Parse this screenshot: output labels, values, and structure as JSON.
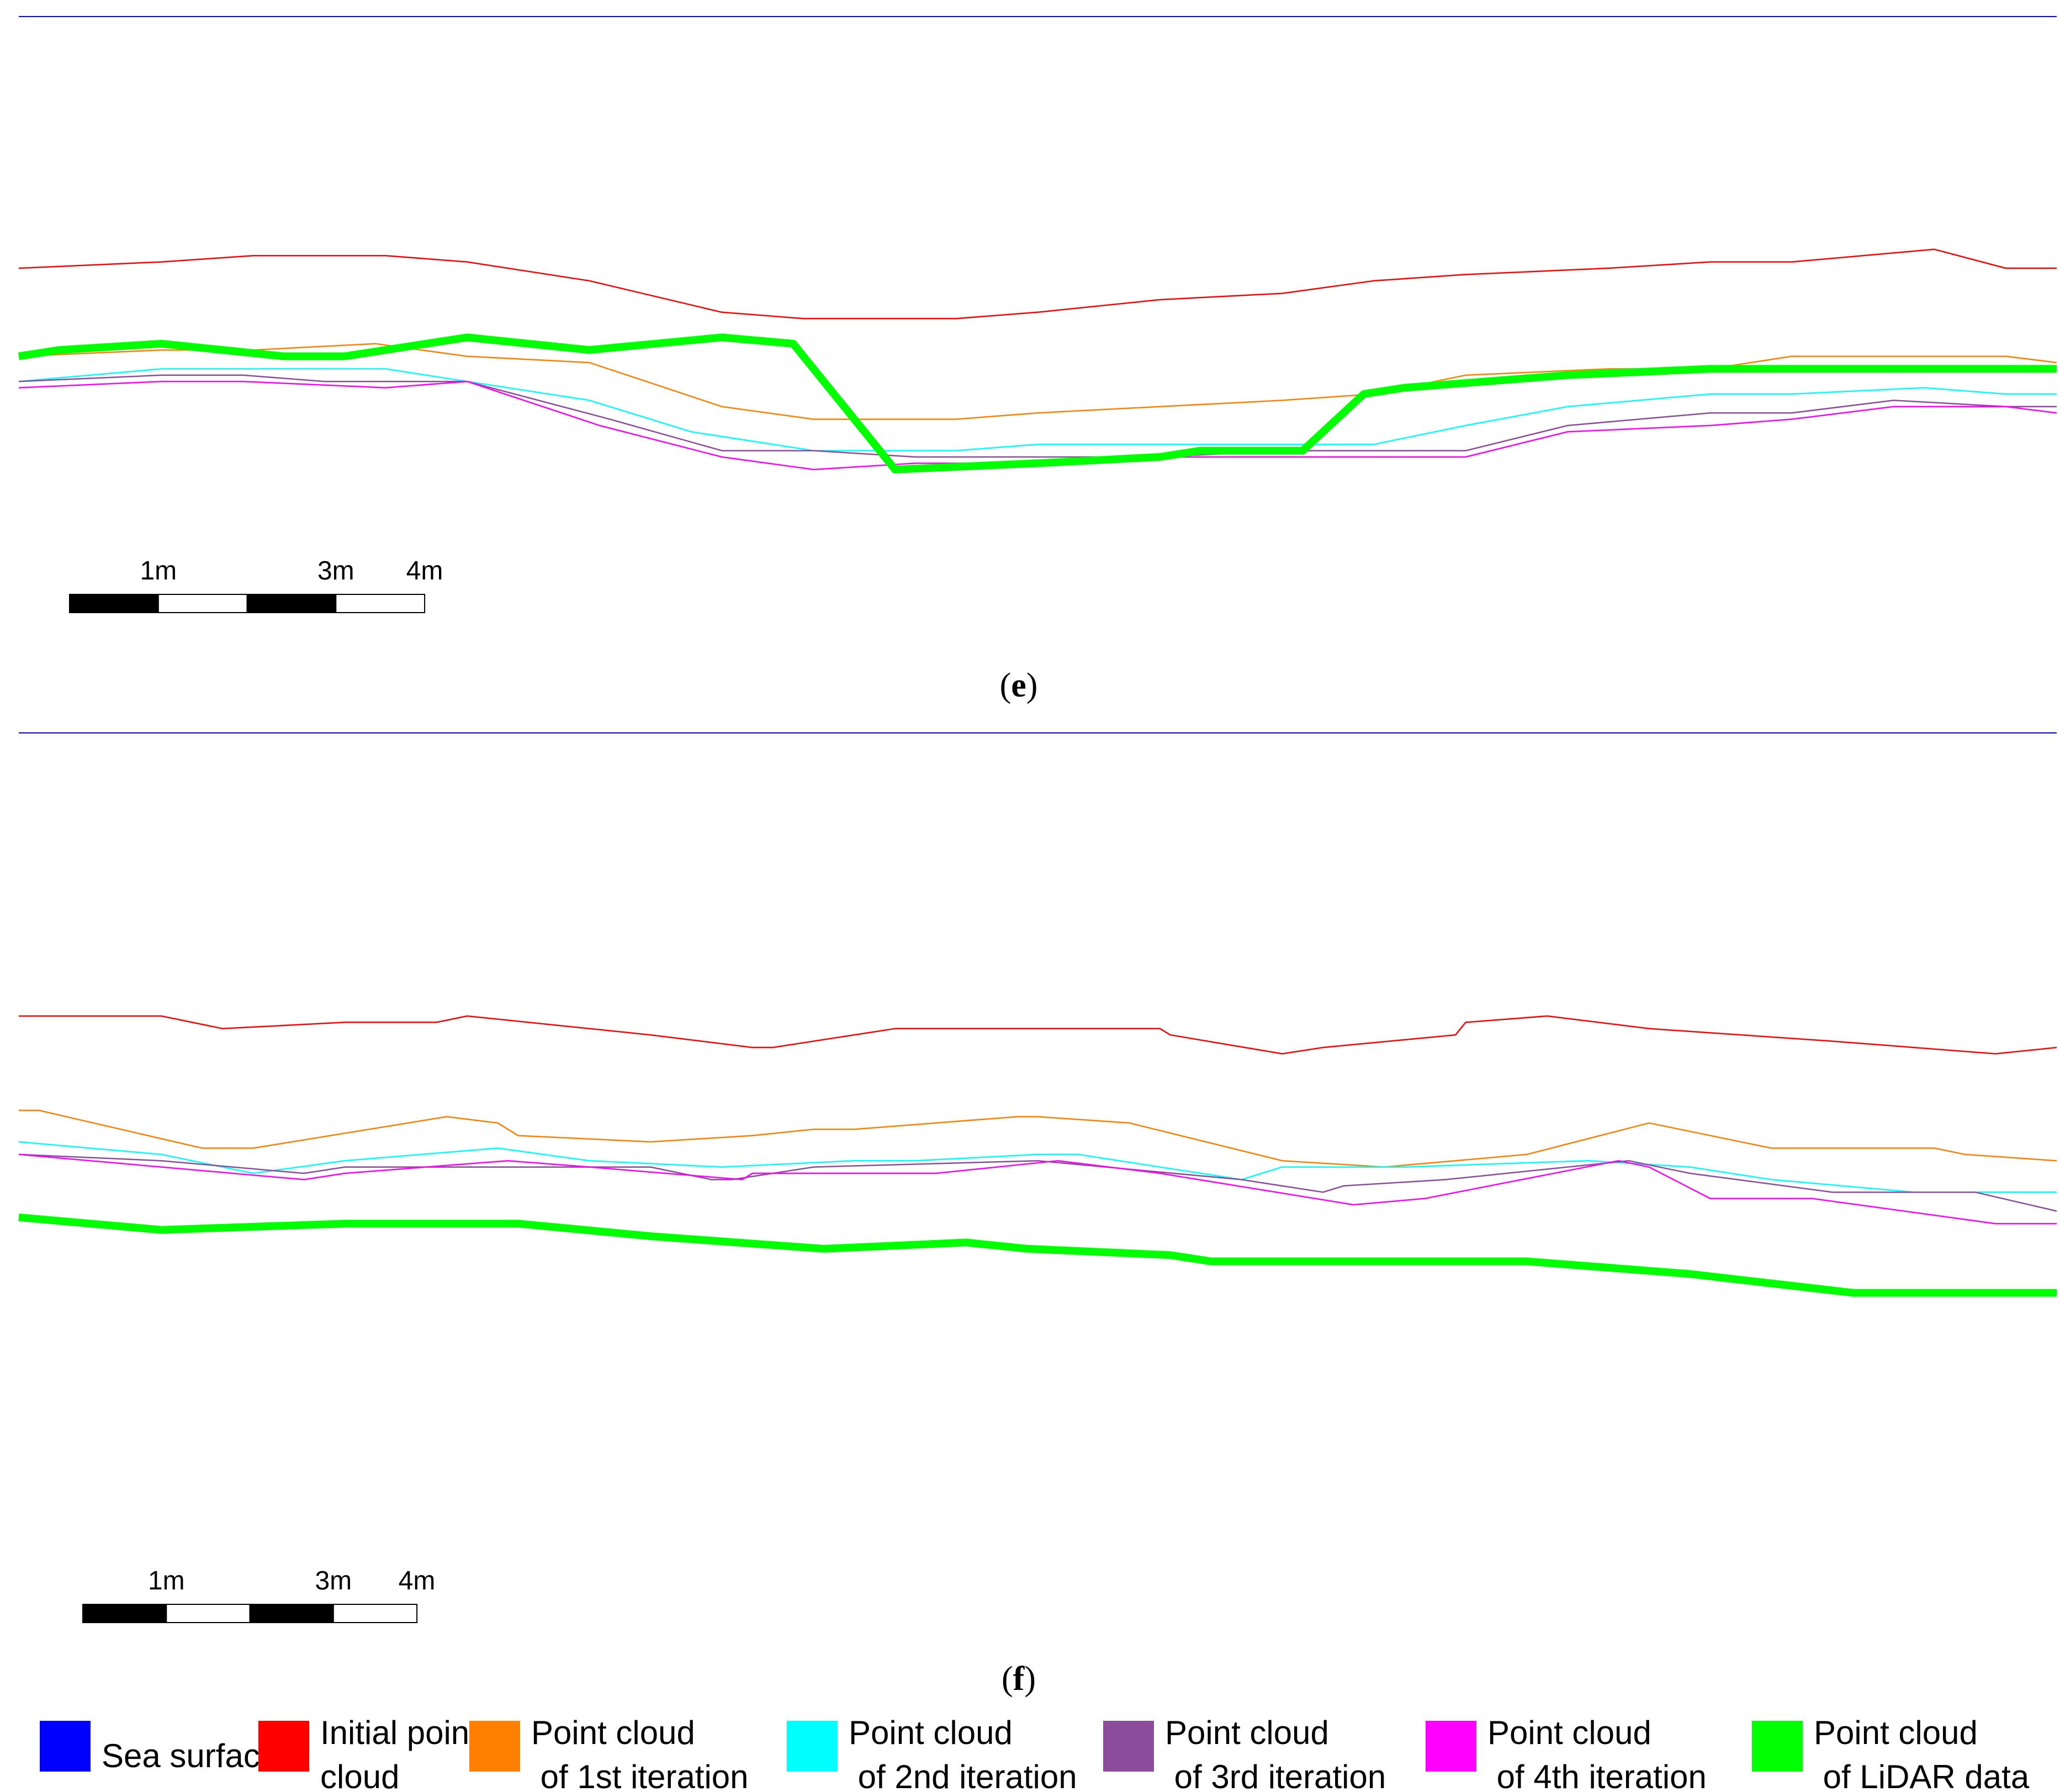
{
  "chart_data": [
    {
      "type": "line",
      "panel_label": "(e)",
      "panel_letter": "e",
      "scale_bar": {
        "labels": [
          "1m",
          "3m",
          "4m"
        ]
      },
      "series": [
        {
          "key": "sea",
          "x": [
            0,
            1
          ],
          "y": [
            0,
            0
          ]
        },
        {
          "key": "initial",
          "x": [
            0,
            0.07,
            0.115,
            0.18,
            0.22,
            0.28,
            0.345,
            0.385,
            0.46,
            0.5,
            0.56,
            0.62,
            0.665,
            0.71,
            0.78,
            0.83,
            0.87,
            0.94,
            0.975,
            1.0
          ],
          "y": [
            -0.4,
            -0.39,
            -0.38,
            -0.38,
            -0.39,
            -0.42,
            -0.47,
            -0.48,
            -0.48,
            -0.47,
            -0.45,
            -0.44,
            -0.42,
            -0.41,
            -0.4,
            -0.39,
            -0.39,
            -0.37,
            -0.4,
            -0.4
          ]
        },
        {
          "key": "iter1",
          "x": [
            0,
            0.07,
            0.115,
            0.175,
            0.22,
            0.28,
            0.345,
            0.39,
            0.46,
            0.5,
            0.56,
            0.62,
            0.665,
            0.71,
            0.78,
            0.83,
            0.87,
            0.94,
            0.975,
            1.0
          ],
          "y": [
            -0.54,
            -0.53,
            -0.53,
            -0.52,
            -0.54,
            -0.55,
            -0.62,
            -0.64,
            -0.64,
            -0.63,
            -0.62,
            -0.61,
            -0.6,
            -0.57,
            -0.56,
            -0.56,
            -0.54,
            -0.54,
            -0.54,
            -0.55
          ]
        },
        {
          "key": "iter2",
          "x": [
            0,
            0.07,
            0.115,
            0.18,
            0.22,
            0.28,
            0.33,
            0.39,
            0.46,
            0.5,
            0.56,
            0.62,
            0.665,
            0.71,
            0.76,
            0.83,
            0.87,
            0.935,
            0.975,
            1.0
          ],
          "y": [
            -0.58,
            -0.56,
            -0.56,
            -0.56,
            -0.58,
            -0.61,
            -0.66,
            -0.69,
            -0.69,
            -0.68,
            -0.68,
            -0.68,
            -0.68,
            -0.65,
            -0.62,
            -0.6,
            -0.6,
            -0.59,
            -0.6,
            -0.6
          ]
        },
        {
          "key": "iter3",
          "x": [
            0,
            0.07,
            0.11,
            0.15,
            0.22,
            0.29,
            0.345,
            0.39,
            0.44,
            0.5,
            0.56,
            0.62,
            0.665,
            0.71,
            0.76,
            0.83,
            0.87,
            0.92,
            0.975,
            1.0
          ],
          "y": [
            -0.58,
            -0.57,
            -0.57,
            -0.58,
            -0.58,
            -0.64,
            -0.69,
            -0.69,
            -0.7,
            -0.7,
            -0.7,
            -0.69,
            -0.69,
            -0.69,
            -0.65,
            -0.63,
            -0.63,
            -0.61,
            -0.62,
            -0.62
          ]
        },
        {
          "key": "iter4",
          "x": [
            0,
            0.07,
            0.11,
            0.18,
            0.22,
            0.285,
            0.345,
            0.39,
            0.44,
            0.5,
            0.56,
            0.62,
            0.665,
            0.71,
            0.76,
            0.83,
            0.87,
            0.92,
            0.975,
            1.0
          ],
          "y": [
            -0.59,
            -0.58,
            -0.58,
            -0.59,
            -0.58,
            -0.65,
            -0.7,
            -0.72,
            -0.71,
            -0.71,
            -0.7,
            -0.7,
            -0.7,
            -0.7,
            -0.66,
            -0.65,
            -0.64,
            -0.62,
            -0.62,
            -0.63
          ]
        },
        {
          "key": "lidar",
          "x": [
            0,
            0.02,
            0.07,
            0.13,
            0.16,
            0.22,
            0.28,
            0.345,
            0.38,
            0.43,
            0.5,
            0.56,
            0.58,
            0.62,
            0.63,
            0.66,
            0.68,
            0.76,
            0.83,
            0.87,
            0.92,
            1.0
          ],
          "y": [
            -0.54,
            -0.53,
            -0.52,
            -0.54,
            -0.54,
            -0.51,
            -0.53,
            -0.51,
            -0.52,
            -0.72,
            -0.71,
            -0.7,
            -0.69,
            -0.69,
            -0.69,
            -0.6,
            -0.59,
            -0.57,
            -0.56,
            -0.56,
            -0.56,
            -0.56
          ]
        }
      ]
    },
    {
      "type": "line",
      "panel_label": "(f)",
      "panel_letter": "f",
      "scale_bar": {
        "labels": [
          "1m",
          "3m",
          "4m"
        ]
      },
      "series": [
        {
          "key": "sea",
          "x": [
            0,
            1
          ],
          "y": [
            0,
            0
          ]
        },
        {
          "key": "initial",
          "x": [
            0,
            0.07,
            0.1,
            0.16,
            0.205,
            0.22,
            0.31,
            0.36,
            0.37,
            0.43,
            0.465,
            0.56,
            0.565,
            0.62,
            0.64,
            0.705,
            0.71,
            0.75,
            0.8,
            0.89,
            0.97,
            1.0
          ],
          "y": [
            -0.45,
            -0.45,
            -0.47,
            -0.46,
            -0.46,
            -0.45,
            -0.48,
            -0.5,
            -0.5,
            -0.47,
            -0.47,
            -0.47,
            -0.48,
            -0.51,
            -0.5,
            -0.48,
            -0.46,
            -0.45,
            -0.47,
            -0.49,
            -0.51,
            -0.5
          ]
        },
        {
          "key": "iter1",
          "x": [
            0,
            0.01,
            0.09,
            0.115,
            0.21,
            0.235,
            0.245,
            0.31,
            0.36,
            0.39,
            0.41,
            0.49,
            0.5,
            0.545,
            0.62,
            0.67,
            0.74,
            0.8,
            0.86,
            0.93,
            0.94,
            0.955,
            1.0
          ],
          "y": [
            -0.6,
            -0.6,
            -0.66,
            -0.66,
            -0.61,
            -0.62,
            -0.64,
            -0.65,
            -0.64,
            -0.63,
            -0.63,
            -0.61,
            -0.61,
            -0.62,
            -0.68,
            -0.69,
            -0.67,
            -0.62,
            -0.66,
            -0.66,
            -0.66,
            -0.67,
            -0.68
          ]
        },
        {
          "key": "iter2",
          "x": [
            0,
            0.07,
            0.115,
            0.16,
            0.235,
            0.28,
            0.345,
            0.41,
            0.44,
            0.5,
            0.52,
            0.6,
            0.62,
            0.68,
            0.77,
            0.82,
            0.86,
            0.93,
            1.0
          ],
          "y": [
            -0.65,
            -0.67,
            -0.7,
            -0.68,
            -0.66,
            -0.68,
            -0.69,
            -0.68,
            -0.68,
            -0.67,
            -0.67,
            -0.71,
            -0.69,
            -0.69,
            -0.68,
            -0.69,
            -0.71,
            -0.73,
            -0.73
          ]
        },
        {
          "key": "iter3",
          "x": [
            0,
            0.07,
            0.14,
            0.16,
            0.24,
            0.31,
            0.34,
            0.35,
            0.39,
            0.5,
            0.6,
            0.64,
            0.65,
            0.7,
            0.79,
            0.82,
            0.89,
            0.96,
            1.0
          ],
          "y": [
            -0.67,
            -0.68,
            -0.7,
            -0.69,
            -0.69,
            -0.69,
            -0.71,
            -0.71,
            -0.69,
            -0.68,
            -0.71,
            -0.73,
            -0.72,
            -0.71,
            -0.68,
            -0.7,
            -0.73,
            -0.73,
            -0.76
          ]
        },
        {
          "key": "iter4",
          "x": [
            0,
            0.07,
            0.14,
            0.16,
            0.24,
            0.28,
            0.355,
            0.36,
            0.4,
            0.45,
            0.51,
            0.56,
            0.655,
            0.69,
            0.785,
            0.8,
            0.83,
            0.88,
            0.97,
            1.0
          ],
          "y": [
            -0.67,
            -0.69,
            -0.71,
            -0.7,
            -0.68,
            -0.69,
            -0.71,
            -0.7,
            -0.7,
            -0.7,
            -0.68,
            -0.7,
            -0.75,
            -0.74,
            -0.68,
            -0.69,
            -0.74,
            -0.74,
            -0.78,
            -0.78
          ]
        },
        {
          "key": "lidar",
          "x": [
            0,
            0.07,
            0.16,
            0.245,
            0.31,
            0.395,
            0.465,
            0.495,
            0.565,
            0.585,
            0.74,
            0.82,
            0.9,
            1.0
          ],
          "y": [
            -0.77,
            -0.79,
            -0.78,
            -0.78,
            -0.8,
            -0.82,
            -0.81,
            -0.82,
            -0.83,
            -0.84,
            -0.84,
            -0.86,
            -0.89,
            -0.89
          ]
        }
      ]
    }
  ],
  "legend": [
    {
      "key": "sea",
      "color": "#0000ff",
      "lines": [
        "Sea surface"
      ]
    },
    {
      "key": "initial",
      "color": "#ff0000",
      "lines": [
        "Initial point",
        "cloud"
      ]
    },
    {
      "key": "iter1",
      "color": "#ff7f00",
      "lines": [
        "Point cloud",
        " of 1st iteration"
      ]
    },
    {
      "key": "iter2",
      "color": "#00ffff",
      "lines": [
        "Point cloud",
        " of 2nd iteration"
      ]
    },
    {
      "key": "iter3",
      "color": "#8b4c9b",
      "lines": [
        "Point cloud",
        " of 3rd iteration"
      ]
    },
    {
      "key": "iter4",
      "color": "#ff00ff",
      "lines": [
        "Point cloud",
        " of 4th iteration"
      ]
    },
    {
      "key": "lidar",
      "color": "#00ff00",
      "lines": [
        "Point cloud",
        " of LiDAR data"
      ]
    }
  ]
}
